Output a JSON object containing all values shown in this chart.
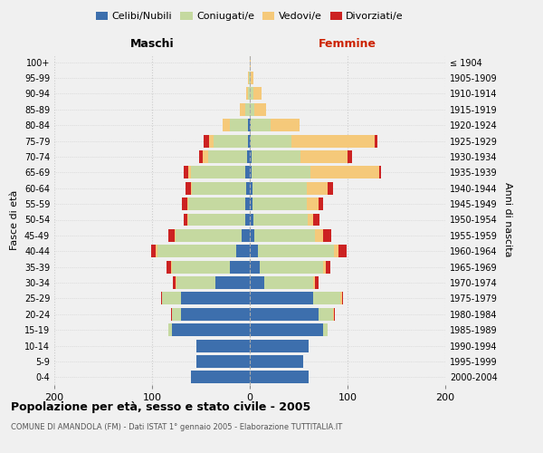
{
  "age_groups": [
    "0-4",
    "5-9",
    "10-14",
    "15-19",
    "20-24",
    "25-29",
    "30-34",
    "35-39",
    "40-44",
    "45-49",
    "50-54",
    "55-59",
    "60-64",
    "65-69",
    "70-74",
    "75-79",
    "80-84",
    "85-89",
    "90-94",
    "95-99",
    "100+"
  ],
  "birth_years": [
    "2000-2004",
    "1995-1999",
    "1990-1994",
    "1985-1989",
    "1980-1984",
    "1975-1979",
    "1970-1974",
    "1965-1969",
    "1960-1964",
    "1955-1959",
    "1950-1954",
    "1945-1949",
    "1940-1944",
    "1935-1939",
    "1930-1934",
    "1925-1929",
    "1920-1924",
    "1915-1919",
    "1910-1914",
    "1905-1909",
    "≤ 1904"
  ],
  "colors": {
    "celibi": "#3d6fad",
    "coniugati": "#c5d9a0",
    "vedovi": "#f5c97a",
    "divorziati": "#cc2222"
  },
  "maschi": {
    "celibi": [
      60,
      55,
      55,
      80,
      70,
      70,
      35,
      20,
      14,
      8,
      5,
      5,
      4,
      5,
      3,
      2,
      2,
      0,
      0,
      0,
      0
    ],
    "coniugati": [
      0,
      0,
      0,
      3,
      10,
      20,
      40,
      60,
      80,
      68,
      58,
      58,
      55,
      55,
      40,
      35,
      18,
      5,
      2,
      1,
      0
    ],
    "vedovi": [
      0,
      0,
      0,
      0,
      0,
      0,
      1,
      1,
      2,
      1,
      1,
      1,
      1,
      3,
      5,
      5,
      8,
      5,
      2,
      1,
      0
    ],
    "divorziati": [
      0,
      0,
      0,
      0,
      1,
      1,
      3,
      4,
      5,
      6,
      4,
      5,
      6,
      5,
      4,
      5,
      0,
      0,
      0,
      0,
      0
    ]
  },
  "femmine": {
    "celibi": [
      60,
      55,
      60,
      75,
      70,
      65,
      15,
      10,
      8,
      5,
      4,
      3,
      3,
      2,
      2,
      1,
      1,
      0,
      0,
      0,
      0
    ],
    "coniugati": [
      0,
      0,
      0,
      5,
      15,
      28,
      50,
      65,
      78,
      62,
      55,
      55,
      55,
      60,
      50,
      42,
      20,
      5,
      4,
      1,
      0
    ],
    "vedovi": [
      0,
      0,
      0,
      0,
      1,
      1,
      2,
      3,
      5,
      8,
      6,
      12,
      22,
      70,
      48,
      85,
      30,
      12,
      8,
      3,
      1
    ],
    "divorziati": [
      0,
      0,
      0,
      0,
      1,
      1,
      3,
      4,
      8,
      8,
      6,
      5,
      5,
      2,
      5,
      3,
      0,
      0,
      0,
      0,
      0
    ]
  },
  "title": "Popolazione per età, sesso e stato civile - 2005",
  "subtitle": "COMUNE DI AMANDOLA (FM) - Dati ISTAT 1° gennaio 2005 - Elaborazione TUTTITALIA.IT",
  "xlabel_left": "Maschi",
  "xlabel_right": "Femmine",
  "ylabel_left": "Fasce di età",
  "ylabel_right": "Anni di nascita",
  "xlim": 200,
  "legend_labels": [
    "Celibi/Nubili",
    "Coniugati/e",
    "Vedovi/e",
    "Divorziati/e"
  ]
}
